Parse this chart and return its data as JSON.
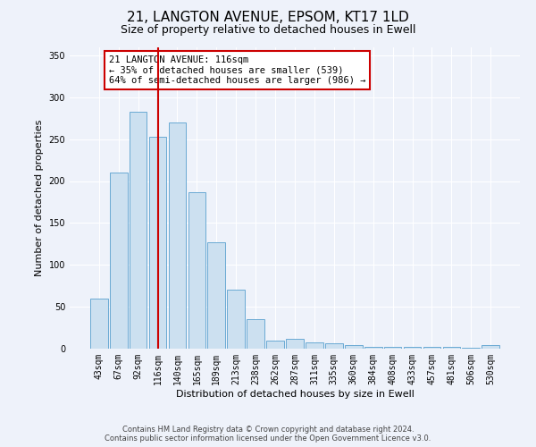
{
  "title": "21, LANGTON AVENUE, EPSOM, KT17 1LD",
  "subtitle": "Size of property relative to detached houses in Ewell",
  "xlabel": "Distribution of detached houses by size in Ewell",
  "ylabel": "Number of detached properties",
  "categories": [
    "43sqm",
    "67sqm",
    "92sqm",
    "116sqm",
    "140sqm",
    "165sqm",
    "189sqm",
    "213sqm",
    "238sqm",
    "262sqm",
    "287sqm",
    "311sqm",
    "335sqm",
    "360sqm",
    "384sqm",
    "408sqm",
    "433sqm",
    "457sqm",
    "481sqm",
    "506sqm",
    "530sqm"
  ],
  "values": [
    60,
    210,
    283,
    253,
    270,
    187,
    127,
    70,
    35,
    10,
    12,
    7,
    6,
    4,
    2,
    2,
    2,
    2,
    2,
    1,
    4
  ],
  "bar_color": "#cce0f0",
  "bar_edge_color": "#6aaad4",
  "marker_index": 3,
  "marker_color": "#cc0000",
  "annotation_text": "21 LANGTON AVENUE: 116sqm\n← 35% of detached houses are smaller (539)\n64% of semi-detached houses are larger (986) →",
  "annotation_box_color": "#ffffff",
  "annotation_box_edge": "#cc0000",
  "ylim": [
    0,
    360
  ],
  "yticks": [
    0,
    50,
    100,
    150,
    200,
    250,
    300,
    350
  ],
  "footer1": "Contains HM Land Registry data © Crown copyright and database right 2024.",
  "footer2": "Contains public sector information licensed under the Open Government Licence v3.0.",
  "bg_color": "#eef2fa",
  "plot_bg_color": "#eef2fa",
  "grid_color": "#ffffff",
  "title_fontsize": 11,
  "subtitle_fontsize": 9,
  "axis_label_fontsize": 8,
  "tick_fontsize": 7,
  "annotation_fontsize": 7.5,
  "footer_fontsize": 6
}
